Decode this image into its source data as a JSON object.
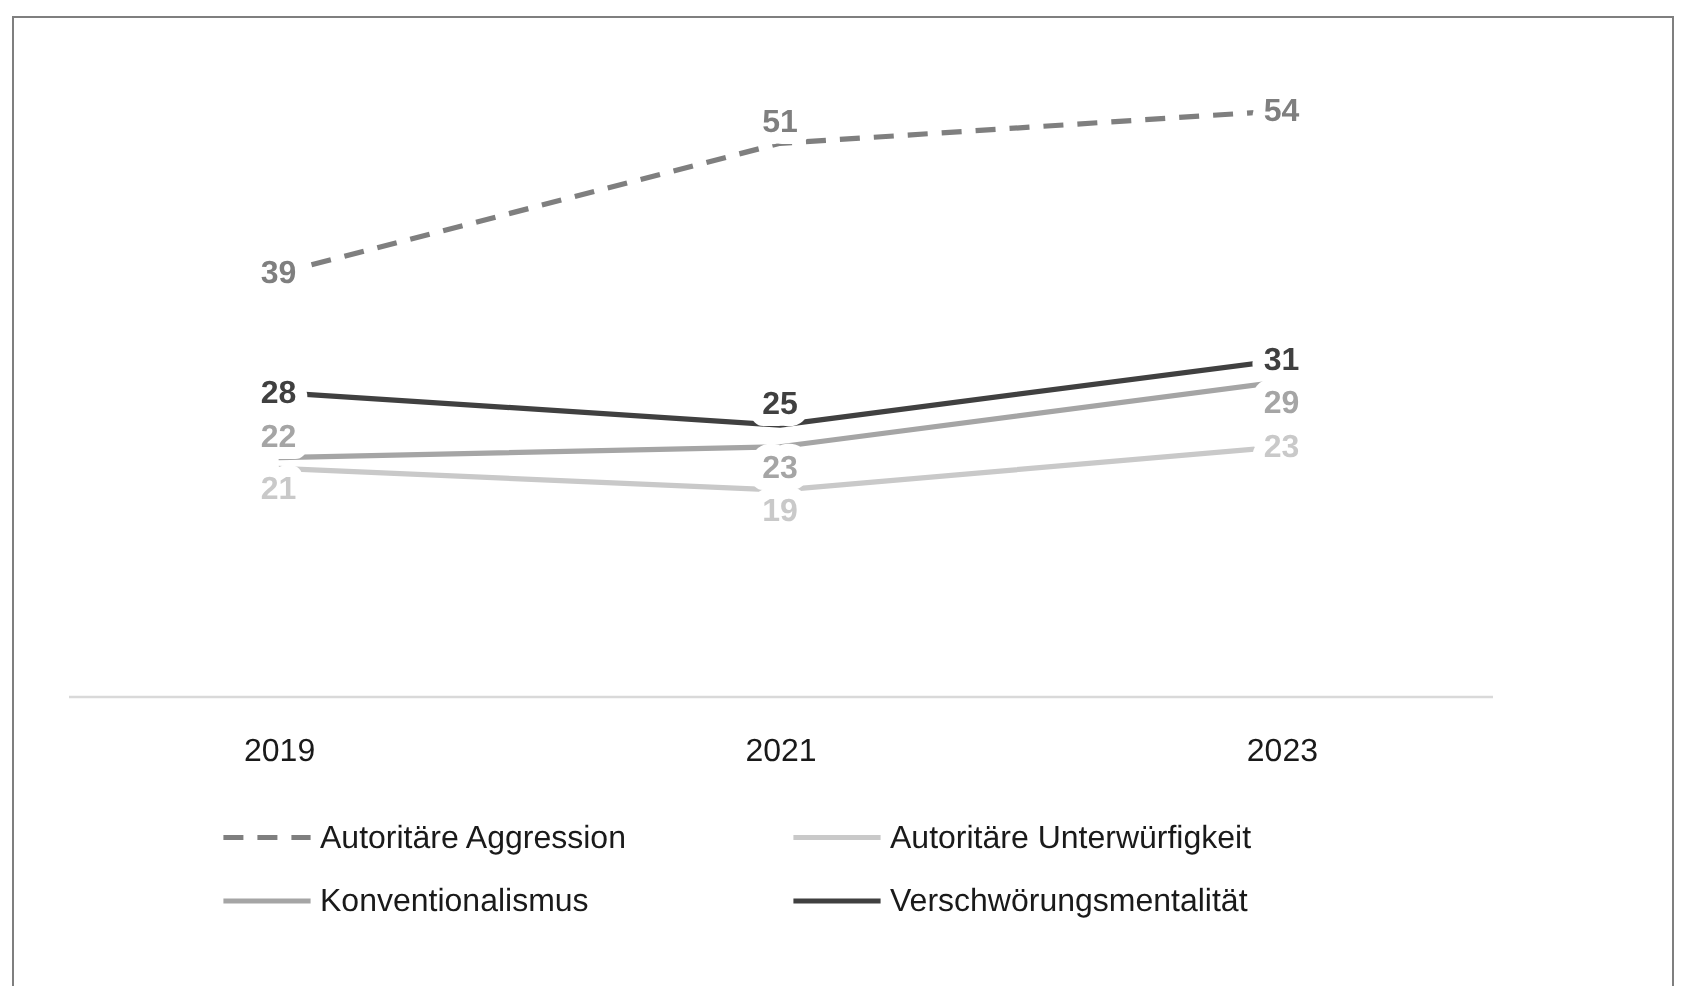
{
  "chart_data": {
    "type": "line",
    "categories": [
      "2019",
      "2021",
      "2023"
    ],
    "series": [
      {
        "name": "Autoritäre Aggression",
        "color": "#7f7f7f",
        "line_style": "dashed",
        "values": [
          39,
          51,
          54
        ]
      },
      {
        "name": "Autoritäre Unterwürfigkeit",
        "color": "#c9c9c9",
        "values": [
          21,
          19,
          23
        ]
      },
      {
        "name": "Konventionalismus",
        "color": "#a5a5a5",
        "values": [
          22,
          23,
          29
        ]
      },
      {
        "name": "Verschwörungsmentalität",
        "color": "#404040",
        "values": [
          28,
          25,
          31
        ]
      }
    ],
    "data_labels": true,
    "legend": "bottom",
    "tick_labels": "x"
  }
}
